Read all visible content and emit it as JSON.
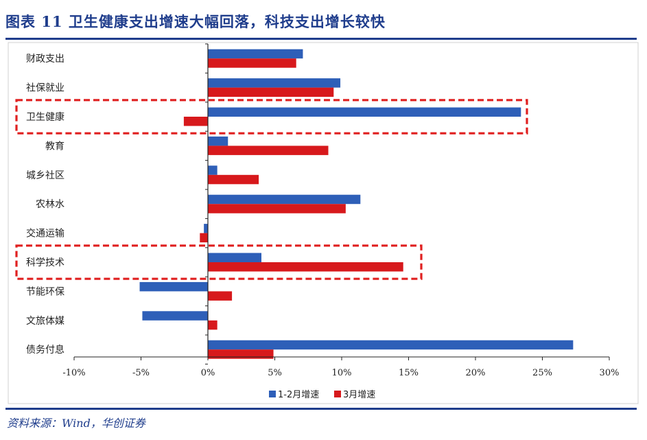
{
  "header": {
    "title": "图表 11   卫生健康支出增速大幅回落，科技支出增长较快"
  },
  "footer": {
    "source": "资料来源：Wind，华创证券"
  },
  "colors": {
    "series1": "#2e5fb8",
    "series2": "#d7191c",
    "highlight": "#e02020",
    "rule": "#1f3d8c"
  },
  "chart_data": {
    "type": "bar",
    "orientation": "horizontal",
    "categories": [
      "财政支出",
      "社保就业",
      "卫生健康",
      "教育",
      "城乡社区",
      "农林水",
      "交通运输",
      "科学技术",
      "节能环保",
      "文旅体媒",
      "债务付息"
    ],
    "series": [
      {
        "name": "1-2月增速",
        "color": "#2e5fb8",
        "values": [
          7.1,
          9.9,
          23.4,
          1.5,
          0.7,
          11.4,
          -0.3,
          4.0,
          -5.1,
          -4.9,
          27.3
        ]
      },
      {
        "name": "3月增速",
        "color": "#d7191c",
        "values": [
          6.6,
          9.4,
          -1.8,
          9.0,
          3.8,
          10.3,
          -0.6,
          14.6,
          1.8,
          0.7,
          4.9
        ]
      }
    ],
    "xlim": [
      -10,
      30
    ],
    "xticks": [
      -10,
      -5,
      0,
      5,
      10,
      15,
      20,
      25,
      30
    ],
    "xtick_labels": [
      "-10%",
      "-5%",
      "0%",
      "5%",
      "10%",
      "15%",
      "20%",
      "25%",
      "30%"
    ],
    "highlighted_categories": [
      "卫生健康",
      "科学技术"
    ],
    "legend_position": "bottom",
    "grid": false
  }
}
